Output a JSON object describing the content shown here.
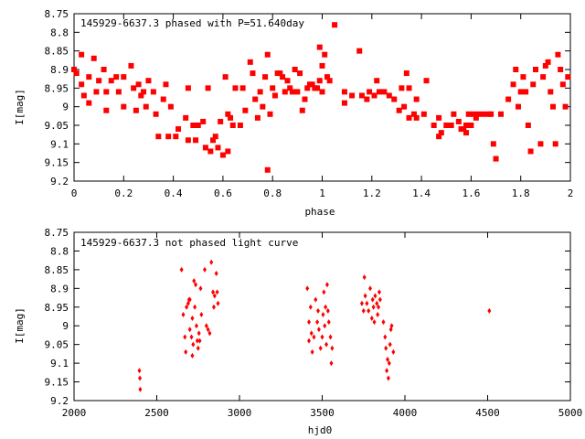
{
  "chart_data": [
    {
      "type": "scatter",
      "title": "145929-6637.3 phased with P=51.640day",
      "xlabel": "phase",
      "ylabel": "I[mag]",
      "xlim": [
        0,
        2
      ],
      "ylim": [
        8.75,
        9.2
      ],
      "y_inverted": true,
      "grid": false,
      "x_ticks": [
        "0",
        "0.2",
        "0.4",
        "0.6",
        "0.8",
        "1",
        "1.2",
        "1.4",
        "1.6",
        "1.8",
        "2"
      ],
      "y_ticks": [
        "8.75",
        "8.8",
        "8.85",
        "8.9",
        "8.95",
        "9",
        "9.05",
        "9.1",
        "9.15",
        "9.2"
      ],
      "marker_color": "#ff0000",
      "marker": "filled-square",
      "points": [
        [
          0.0,
          8.9
        ],
        [
          0.01,
          8.91
        ],
        [
          0.03,
          8.86
        ],
        [
          0.03,
          8.94
        ],
        [
          0.04,
          8.97
        ],
        [
          0.06,
          8.92
        ],
        [
          0.06,
          8.99
        ],
        [
          0.08,
          8.87
        ],
        [
          0.09,
          8.96
        ],
        [
          0.1,
          8.93
        ],
        [
          0.12,
          8.9
        ],
        [
          0.13,
          8.96
        ],
        [
          0.13,
          9.01
        ],
        [
          0.15,
          8.93
        ],
        [
          0.17,
          8.92
        ],
        [
          0.18,
          8.96
        ],
        [
          0.2,
          8.92
        ],
        [
          0.2,
          9.0
        ],
        [
          0.23,
          8.89
        ],
        [
          0.24,
          8.95
        ],
        [
          0.25,
          9.01
        ],
        [
          0.26,
          8.94
        ],
        [
          0.27,
          8.97
        ],
        [
          0.28,
          8.96
        ],
        [
          0.29,
          9.0
        ],
        [
          0.3,
          8.93
        ],
        [
          0.32,
          8.96
        ],
        [
          0.33,
          9.02
        ],
        [
          0.34,
          9.08
        ],
        [
          0.36,
          8.98
        ],
        [
          0.37,
          8.94
        ],
        [
          0.38,
          9.08
        ],
        [
          0.39,
          9.0
        ],
        [
          0.41,
          9.08
        ],
        [
          0.42,
          9.06
        ],
        [
          0.45,
          9.03
        ],
        [
          0.46,
          9.09
        ],
        [
          0.46,
          8.95
        ],
        [
          0.48,
          9.05
        ],
        [
          0.49,
          9.09
        ],
        [
          0.5,
          9.05
        ],
        [
          0.52,
          9.04
        ],
        [
          0.53,
          9.11
        ],
        [
          0.54,
          8.95
        ],
        [
          0.55,
          9.12
        ],
        [
          0.56,
          9.09
        ],
        [
          0.57,
          9.08
        ],
        [
          0.58,
          9.11
        ],
        [
          0.59,
          9.04
        ],
        [
          0.6,
          9.13
        ],
        [
          0.61,
          8.92
        ],
        [
          0.62,
          9.12
        ],
        [
          0.62,
          9.02
        ],
        [
          0.63,
          9.03
        ],
        [
          0.64,
          9.05
        ],
        [
          0.65,
          8.95
        ],
        [
          0.67,
          9.05
        ],
        [
          0.68,
          8.95
        ],
        [
          0.69,
          9.01
        ],
        [
          0.71,
          8.88
        ],
        [
          0.72,
          8.91
        ],
        [
          0.73,
          8.98
        ],
        [
          0.74,
          9.03
        ],
        [
          0.75,
          8.96
        ],
        [
          0.76,
          9.0
        ],
        [
          0.77,
          8.92
        ],
        [
          0.78,
          8.86
        ],
        [
          0.78,
          9.17
        ],
        [
          0.79,
          9.02
        ],
        [
          0.8,
          8.95
        ],
        [
          0.81,
          8.97
        ],
        [
          0.82,
          8.91
        ],
        [
          0.83,
          8.91
        ],
        [
          0.84,
          8.92
        ],
        [
          0.85,
          8.96
        ],
        [
          0.86,
          8.93
        ],
        [
          0.87,
          8.95
        ],
        [
          0.88,
          8.96
        ],
        [
          0.89,
          8.9
        ],
        [
          0.9,
          8.96
        ],
        [
          0.91,
          8.91
        ],
        [
          0.92,
          9.01
        ],
        [
          0.93,
          8.98
        ],
        [
          0.94,
          8.95
        ],
        [
          0.95,
          8.94
        ],
        [
          0.96,
          8.94
        ],
        [
          0.97,
          8.95
        ],
        [
          0.98,
          8.95
        ],
        [
          0.99,
          8.93
        ],
        [
          0.99,
          8.84
        ],
        [
          1.0,
          8.89
        ],
        [
          1.0,
          8.96
        ],
        [
          1.01,
          8.86
        ],
        [
          1.02,
          8.92
        ],
        [
          1.03,
          8.93
        ],
        [
          1.05,
          8.78
        ],
        [
          1.09,
          8.96
        ],
        [
          1.09,
          8.99
        ],
        [
          1.12,
          8.97
        ],
        [
          1.15,
          8.85
        ],
        [
          1.16,
          8.97
        ],
        [
          1.18,
          8.98
        ],
        [
          1.19,
          8.96
        ],
        [
          1.21,
          8.97
        ],
        [
          1.22,
          8.93
        ],
        [
          1.23,
          8.96
        ],
        [
          1.25,
          8.96
        ],
        [
          1.27,
          8.97
        ],
        [
          1.29,
          8.98
        ],
        [
          1.31,
          9.01
        ],
        [
          1.32,
          8.95
        ],
        [
          1.33,
          9.0
        ],
        [
          1.34,
          8.91
        ],
        [
          1.35,
          8.95
        ],
        [
          1.35,
          9.03
        ],
        [
          1.37,
          9.02
        ],
        [
          1.38,
          8.98
        ],
        [
          1.38,
          9.03
        ],
        [
          1.41,
          9.02
        ],
        [
          1.42,
          8.93
        ],
        [
          1.45,
          9.05
        ],
        [
          1.47,
          9.03
        ],
        [
          1.47,
          9.08
        ],
        [
          1.48,
          9.07
        ],
        [
          1.5,
          9.05
        ],
        [
          1.52,
          9.05
        ],
        [
          1.53,
          9.02
        ],
        [
          1.55,
          9.04
        ],
        [
          1.56,
          9.06
        ],
        [
          1.57,
          9.06
        ],
        [
          1.58,
          9.05
        ],
        [
          1.58,
          9.07
        ],
        [
          1.59,
          9.02
        ],
        [
          1.6,
          9.05
        ],
        [
          1.61,
          9.02
        ],
        [
          1.62,
          9.03
        ],
        [
          1.63,
          9.02
        ],
        [
          1.65,
          9.02
        ],
        [
          1.67,
          9.02
        ],
        [
          1.68,
          9.02
        ],
        [
          1.69,
          9.1
        ],
        [
          1.7,
          9.14
        ],
        [
          1.72,
          9.02
        ],
        [
          1.75,
          8.98
        ],
        [
          1.77,
          8.94
        ],
        [
          1.78,
          8.9
        ],
        [
          1.79,
          9.0
        ],
        [
          1.8,
          8.96
        ],
        [
          1.81,
          8.92
        ],
        [
          1.82,
          8.96
        ],
        [
          1.83,
          9.05
        ],
        [
          1.84,
          9.12
        ],
        [
          1.85,
          8.94
        ],
        [
          1.86,
          8.9
        ],
        [
          1.88,
          9.1
        ],
        [
          1.89,
          8.92
        ],
        [
          1.9,
          8.89
        ],
        [
          1.91,
          8.88
        ],
        [
          1.92,
          8.96
        ],
        [
          1.93,
          9.0
        ],
        [
          1.94,
          9.1
        ],
        [
          1.95,
          8.86
        ],
        [
          1.96,
          8.9
        ],
        [
          1.97,
          8.94
        ],
        [
          1.98,
          9.0
        ],
        [
          1.99,
          8.92
        ]
      ]
    },
    {
      "type": "scatter",
      "title": "145929-6637.3 not phased light curve",
      "xlabel": "hjd0",
      "ylabel": "I[mag]",
      "xlim": [
        2000,
        5000
      ],
      "ylim": [
        8.75,
        9.2
      ],
      "y_inverted": true,
      "grid": false,
      "x_ticks": [
        "2000",
        "2500",
        "3000",
        "3500",
        "4000",
        "4500",
        "5000"
      ],
      "y_ticks": [
        "8.75",
        "8.8",
        "8.85",
        "8.9",
        "8.95",
        "9",
        "9.05",
        "9.1",
        "9.15",
        "9.2"
      ],
      "marker_color": "#ff0000",
      "marker": "filled-diamond",
      "points": [
        [
          2395,
          9.12
        ],
        [
          2398,
          9.14
        ],
        [
          2400,
          9.17
        ],
        [
          2650,
          8.85
        ],
        [
          2660,
          8.97
        ],
        [
          2670,
          9.03
        ],
        [
          2675,
          9.07
        ],
        [
          2680,
          8.95
        ],
        [
          2690,
          8.94
        ],
        [
          2695,
          8.93
        ],
        [
          2700,
          9.01
        ],
        [
          2700,
          8.93
        ],
        [
          2710,
          9.03
        ],
        [
          2715,
          8.98
        ],
        [
          2715,
          9.08
        ],
        [
          2720,
          9.05
        ],
        [
          2725,
          8.88
        ],
        [
          2730,
          8.95
        ],
        [
          2735,
          8.89
        ],
        [
          2740,
          9.0
        ],
        [
          2745,
          9.04
        ],
        [
          2750,
          9.06
        ],
        [
          2755,
          9.02
        ],
        [
          2760,
          9.04
        ],
        [
          2765,
          8.9
        ],
        [
          2770,
          8.97
        ],
        [
          2790,
          8.85
        ],
        [
          2800,
          9.0
        ],
        [
          2810,
          9.01
        ],
        [
          2820,
          9.02
        ],
        [
          2830,
          8.83
        ],
        [
          2840,
          8.91
        ],
        [
          2845,
          8.95
        ],
        [
          2850,
          8.92
        ],
        [
          2860,
          8.86
        ],
        [
          2865,
          8.91
        ],
        [
          2870,
          8.94
        ],
        [
          3410,
          8.9
        ],
        [
          3420,
          8.99
        ],
        [
          3420,
          9.04
        ],
        [
          3430,
          8.95
        ],
        [
          3435,
          9.02
        ],
        [
          3440,
          9.07
        ],
        [
          3450,
          9.03
        ],
        [
          3460,
          8.93
        ],
        [
          3470,
          8.99
        ],
        [
          3475,
          8.96
        ],
        [
          3480,
          9.01
        ],
        [
          3490,
          9.06
        ],
        [
          3500,
          9.03
        ],
        [
          3505,
          8.97
        ],
        [
          3510,
          8.91
        ],
        [
          3515,
          9.0
        ],
        [
          3520,
          8.95
        ],
        [
          3525,
          9.05
        ],
        [
          3530,
          8.89
        ],
        [
          3535,
          8.96
        ],
        [
          3540,
          8.99
        ],
        [
          3550,
          9.03
        ],
        [
          3555,
          9.1
        ],
        [
          3560,
          9.06
        ],
        [
          3740,
          8.94
        ],
        [
          3750,
          8.96
        ],
        [
          3755,
          8.87
        ],
        [
          3760,
          8.92
        ],
        [
          3770,
          8.94
        ],
        [
          3780,
          8.96
        ],
        [
          3790,
          8.9
        ],
        [
          3800,
          8.98
        ],
        [
          3805,
          8.93
        ],
        [
          3810,
          8.95
        ],
        [
          3815,
          8.99
        ],
        [
          3820,
          8.92
        ],
        [
          3830,
          8.94
        ],
        [
          3835,
          8.97
        ],
        [
          3840,
          8.95
        ],
        [
          3845,
          8.91
        ],
        [
          3850,
          8.93
        ],
        [
          3870,
          8.99
        ],
        [
          3880,
          9.03
        ],
        [
          3885,
          9.06
        ],
        [
          3890,
          9.12
        ],
        [
          3895,
          9.09
        ],
        [
          3900,
          9.14
        ],
        [
          3905,
          9.1
        ],
        [
          3910,
          9.05
        ],
        [
          3915,
          9.01
        ],
        [
          3920,
          9.0
        ],
        [
          3930,
          9.07
        ],
        [
          4510,
          8.96
        ]
      ]
    }
  ]
}
